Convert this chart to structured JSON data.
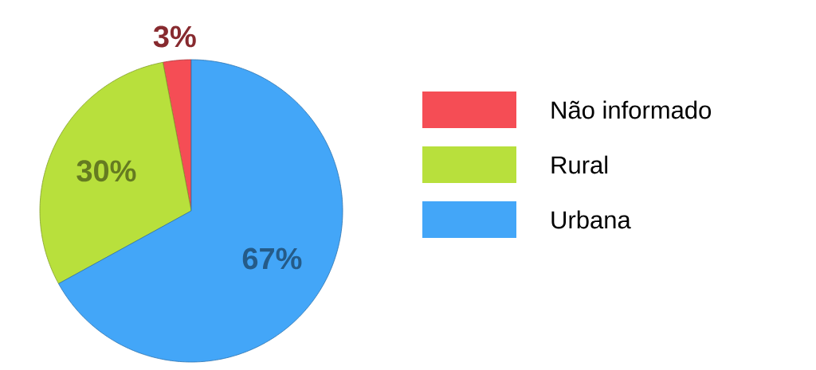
{
  "chart_data": {
    "type": "pie",
    "categories": [
      "Não informado",
      "Rural",
      "Urbana"
    ],
    "values": [
      3,
      30,
      67
    ],
    "colors": [
      "#f54d55",
      "#b8e03c",
      "#43a6f8"
    ],
    "value_labels": [
      "3%",
      "30%",
      "67%"
    ],
    "legend": "right"
  }
}
